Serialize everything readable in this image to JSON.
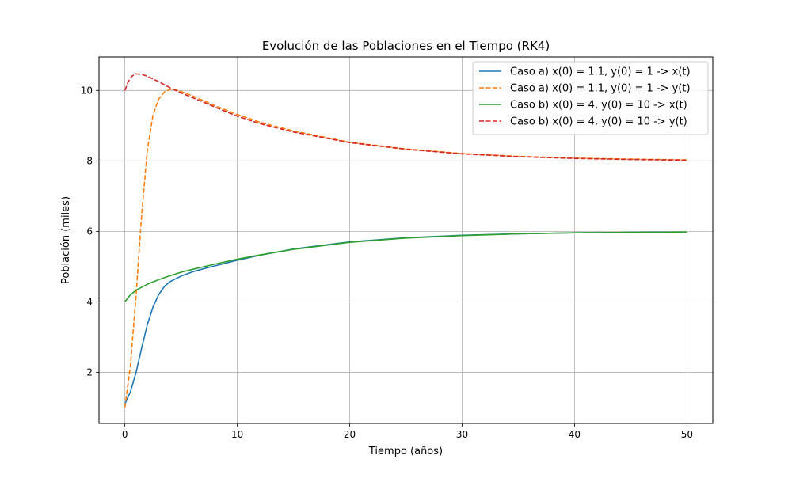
{
  "chart_data": {
    "type": "line",
    "title": "Evolución de las Poblaciones en el Tiempo (RK4)",
    "xlabel": "Tiempo (años)",
    "ylabel": "Población (miles)",
    "xlim": [
      -2.3,
      52.3
    ],
    "ylim": [
      0.55,
      10.95
    ],
    "xticks": [
      0,
      10,
      20,
      30,
      40,
      50
    ],
    "yticks": [
      2,
      4,
      6,
      8,
      10
    ],
    "grid": true,
    "legend_position": "top-right",
    "series": [
      {
        "name": "Caso a) x(0) = 1.1, y(0) = 1 -> x(t)",
        "color": "#1f77b4",
        "dash": "solid",
        "x": [
          0,
          0.5,
          1,
          1.5,
          2,
          2.5,
          3,
          3.5,
          4,
          5,
          6,
          7,
          8,
          10,
          12,
          15,
          20,
          25,
          30,
          35,
          40,
          45,
          50
        ],
        "y": [
          1.1,
          1.45,
          2.0,
          2.7,
          3.35,
          3.85,
          4.2,
          4.43,
          4.57,
          4.73,
          4.85,
          4.94,
          5.02,
          5.18,
          5.32,
          5.5,
          5.7,
          5.82,
          5.89,
          5.93,
          5.96,
          5.97,
          5.98
        ]
      },
      {
        "name": "Caso a) x(0) = 1.1, y(0) = 1 -> y(t)",
        "color": "#ff7f0e",
        "dash": "dashed",
        "x": [
          0,
          0.5,
          1,
          1.5,
          2,
          2.5,
          3,
          3.5,
          4,
          4.5,
          5,
          6,
          8,
          10,
          12,
          15,
          20,
          25,
          30,
          35,
          40,
          45,
          50
        ],
        "y": [
          1.0,
          2.2,
          4.2,
          6.5,
          8.3,
          9.3,
          9.75,
          9.95,
          10.03,
          10.02,
          9.97,
          9.85,
          9.57,
          9.32,
          9.1,
          8.85,
          8.53,
          8.34,
          8.21,
          8.13,
          8.08,
          8.05,
          8.03
        ]
      },
      {
        "name": "Caso b) x(0) = 4, y(0) = 10 -> x(t)",
        "color": "#2ca02c",
        "dash": "solid",
        "x": [
          0,
          0.5,
          1,
          2,
          3,
          4,
          5,
          6,
          8,
          10,
          12,
          15,
          20,
          25,
          30,
          35,
          40,
          45,
          50
        ],
        "y": [
          4.0,
          4.2,
          4.33,
          4.5,
          4.63,
          4.74,
          4.84,
          4.92,
          5.07,
          5.21,
          5.33,
          5.49,
          5.69,
          5.81,
          5.88,
          5.93,
          5.96,
          5.97,
          5.98
        ]
      },
      {
        "name": "Caso b) x(0) = 4, y(0) = 10 -> y(t)",
        "color": "#d62728",
        "dash": "dashed",
        "x": [
          0,
          0.3,
          0.6,
          1,
          1.5,
          2,
          3,
          4,
          5,
          6,
          8,
          10,
          12,
          15,
          20,
          25,
          30,
          35,
          40,
          45,
          50
        ],
        "y": [
          10.0,
          10.25,
          10.4,
          10.47,
          10.46,
          10.4,
          10.25,
          10.08,
          9.93,
          9.8,
          9.53,
          9.27,
          9.06,
          8.82,
          8.52,
          8.33,
          8.2,
          8.12,
          8.07,
          8.04,
          8.02
        ]
      }
    ]
  }
}
